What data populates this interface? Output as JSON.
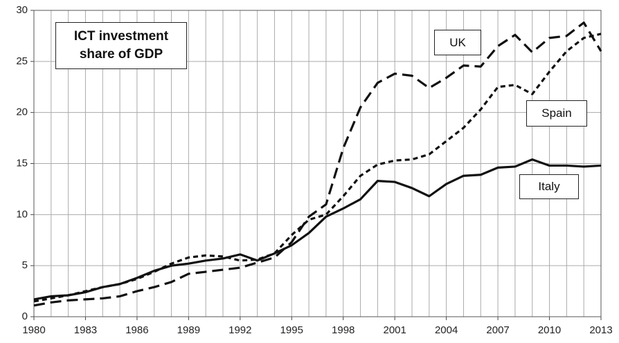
{
  "chart_data": {
    "type": "line",
    "title": "ICT investment share of GDP",
    "x": [
      1980,
      1981,
      1982,
      1983,
      1984,
      1985,
      1986,
      1987,
      1988,
      1989,
      1990,
      1991,
      1992,
      1993,
      1994,
      1995,
      1996,
      1997,
      1998,
      1999,
      2000,
      2001,
      2002,
      2003,
      2004,
      2005,
      2006,
      2007,
      2008,
      2009,
      2010,
      2011,
      2012,
      2013
    ],
    "xlim": [
      1980,
      2013
    ],
    "xticks": [
      1980,
      1983,
      1986,
      1989,
      1992,
      1995,
      1998,
      2001,
      2004,
      2007,
      2010,
      2013
    ],
    "ylim": [
      0,
      30
    ],
    "yticks": [
      0,
      5,
      10,
      15,
      20,
      25,
      30
    ],
    "grid": true,
    "series": [
      {
        "name": "UK",
        "color": "#111111",
        "style": "long-dash",
        "values": [
          1.1,
          1.4,
          1.6,
          1.7,
          1.8,
          2.0,
          2.5,
          2.9,
          3.4,
          4.2,
          4.4,
          4.6,
          4.8,
          5.3,
          5.8,
          7.3,
          9.8,
          11.0,
          16.5,
          20.5,
          22.9,
          23.8,
          23.6,
          22.4,
          23.4,
          24.6,
          24.5,
          26.5,
          27.6,
          25.9,
          27.3,
          27.5,
          28.8,
          26.0
        ]
      },
      {
        "name": "Spain",
        "color": "#111111",
        "style": "short-dash",
        "values": [
          1.5,
          1.8,
          2.1,
          2.5,
          2.9,
          3.2,
          3.7,
          4.4,
          5.2,
          5.8,
          6.0,
          5.9,
          5.5,
          5.6,
          6.2,
          8.0,
          9.5,
          10.0,
          11.8,
          13.8,
          14.9,
          15.3,
          15.4,
          15.9,
          17.2,
          18.5,
          20.3,
          22.5,
          22.7,
          21.8,
          24.0,
          26.0,
          27.3,
          27.7
        ]
      },
      {
        "name": "Italy",
        "color": "#111111",
        "style": "solid",
        "values": [
          1.7,
          2.0,
          2.1,
          2.4,
          2.9,
          3.2,
          3.8,
          4.5,
          5.0,
          5.2,
          5.5,
          5.7,
          6.1,
          5.5,
          6.2,
          7.0,
          8.2,
          9.8,
          10.6,
          11.5,
          13.3,
          13.2,
          12.6,
          11.8,
          13.0,
          13.8,
          13.9,
          14.6,
          14.7,
          15.4,
          14.8,
          14.8,
          14.7,
          14.8
        ]
      }
    ]
  }
}
